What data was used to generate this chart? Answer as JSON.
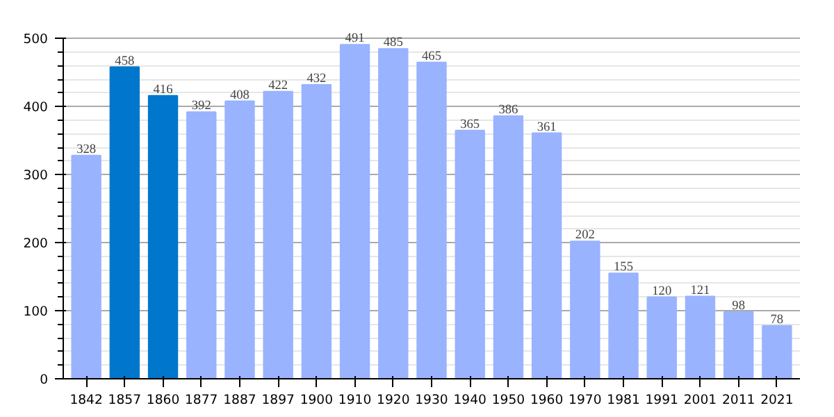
{
  "chart_data": {
    "type": "bar",
    "categories": [
      "1842",
      "1857",
      "1860",
      "1877",
      "1887",
      "1897",
      "1900",
      "1910",
      "1920",
      "1930",
      "1940",
      "1950",
      "1960",
      "1970",
      "1981",
      "1991",
      "2001",
      "2011",
      "2021"
    ],
    "values": [
      328,
      458,
      416,
      392,
      408,
      422,
      432,
      491,
      485,
      465,
      365,
      386,
      361,
      202,
      155,
      120,
      121,
      98,
      78
    ],
    "colors": [
      "#99b3ff",
      "#0077cc",
      "#0077cc",
      "#99b3ff",
      "#99b3ff",
      "#99b3ff",
      "#99b3ff",
      "#99b3ff",
      "#99b3ff",
      "#99b3ff",
      "#99b3ff",
      "#99b3ff",
      "#99b3ff",
      "#99b3ff",
      "#99b3ff",
      "#99b3ff",
      "#99b3ff",
      "#99b3ff",
      "#99b3ff"
    ],
    "ylim": [
      0,
      500
    ],
    "yticks": [
      0,
      100,
      200,
      300,
      400,
      500
    ],
    "grid": "y",
    "data_labels": true
  }
}
